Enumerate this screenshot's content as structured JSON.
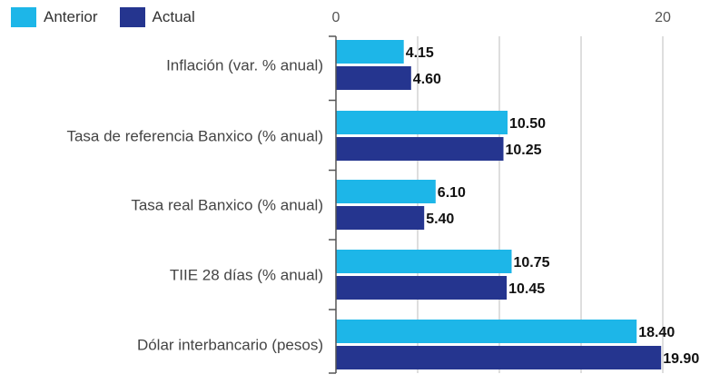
{
  "chart_data": {
    "type": "bar",
    "orientation": "horizontal",
    "categories": [
      "Inflación (var. % anual)",
      "Tasa de referencia Banxico (% anual)",
      "Tasa real Banxico (% anual)",
      "TIIE 28 días (% anual)",
      "Dólar interbancario (pesos)"
    ],
    "series": [
      {
        "name": "Anterior",
        "color": "#1db6e8",
        "values": [
          4.15,
          10.5,
          6.1,
          10.75,
          18.4
        ],
        "labels": [
          "4.15",
          "10.50",
          "6.10",
          "10.75",
          "18.40"
        ]
      },
      {
        "name": "Actual",
        "color": "#25358f",
        "values": [
          4.6,
          10.25,
          5.4,
          10.45,
          19.9
        ],
        "labels": [
          "4.60",
          "10.25",
          "5.40",
          "10.45",
          "19.90"
        ]
      }
    ],
    "x_ticks": [
      {
        "value": 0,
        "label": "0"
      },
      {
        "value": 20,
        "label": "20"
      }
    ],
    "xlim": [
      0,
      20
    ],
    "grid_lines": [
      5,
      10,
      15,
      20
    ],
    "grid": true,
    "legend_position": "top-left",
    "grid_color": "#bdbdbd",
    "axis_color": "#555555"
  }
}
